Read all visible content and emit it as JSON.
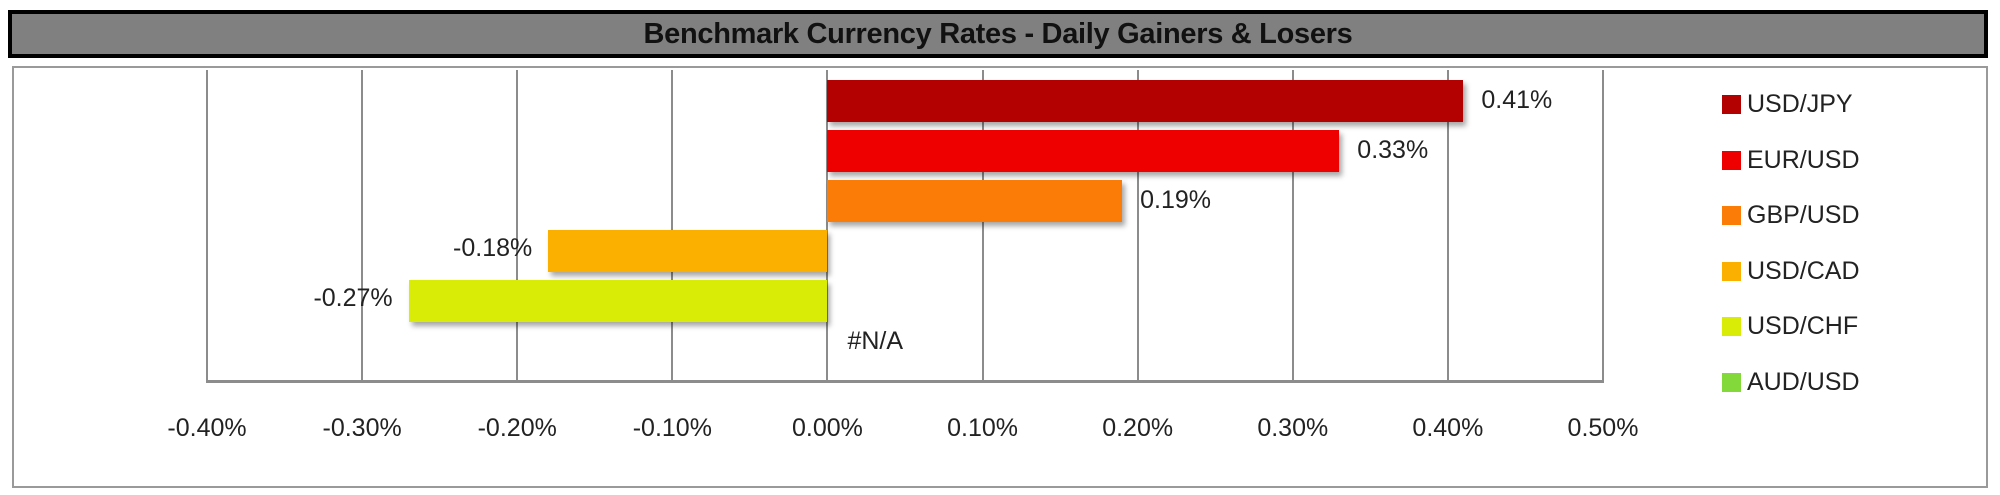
{
  "chart_data": {
    "type": "bar",
    "orientation": "horizontal",
    "title": "Benchmark Currency Rates - Daily Gainers & Losers",
    "xlabel": "",
    "ylabel": "",
    "xlim": [
      -0.4,
      0.5
    ],
    "x_unit": "%",
    "grid": true,
    "legend_position": "right",
    "x_ticks": [
      "-0.40%",
      "-0.30%",
      "-0.20%",
      "-0.10%",
      "0.00%",
      "0.10%",
      "0.20%",
      "0.30%",
      "0.40%",
      "0.50%"
    ],
    "categories": [
      "USD/JPY",
      "EUR/USD",
      "GBP/USD",
      "USD/CAD",
      "USD/CHF",
      "AUD/USD"
    ],
    "values": [
      0.41,
      0.33,
      0.19,
      -0.18,
      -0.27,
      null
    ],
    "data_labels": [
      "0.41%",
      "0.33%",
      "0.19%",
      "-0.18%",
      "-0.27%",
      "#N/A"
    ],
    "colors": [
      "#b30000",
      "#ee0000",
      "#fb7d07",
      "#fbb000",
      "#d9ec06",
      "#84d93a"
    ]
  },
  "title": "Benchmark Currency Rates - Daily Gainers & Losers",
  "legend": [
    {
      "label": "USD/JPY",
      "color": "#b30000"
    },
    {
      "label": "EUR/USD",
      "color": "#ee0000"
    },
    {
      "label": "GBP/USD",
      "color": "#fb7d07"
    },
    {
      "label": "USD/CAD",
      "color": "#fbb000"
    },
    {
      "label": "USD/CHF",
      "color": "#d9ec06"
    },
    {
      "label": "AUD/USD",
      "color": "#84d93a"
    }
  ]
}
